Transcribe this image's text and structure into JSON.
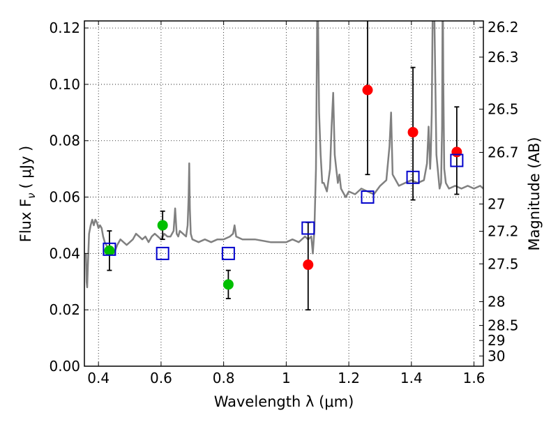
{
  "chart_data": {
    "type": "scatter",
    "xlabel": "Wavelength  λ (μm)",
    "ylabel": "Flux  F",
    "ylabel_sub": "ν",
    "ylabel_unit": "( μJy )",
    "y2label": "Magnitude (AB)",
    "xlim": [
      0.355,
      1.63
    ],
    "ylim": [
      0.0,
      0.1225
    ],
    "grid": true,
    "x_ticks": [
      {
        "value": 0.4,
        "label": "0.4"
      },
      {
        "value": 0.6,
        "label": "0.6"
      },
      {
        "value": 0.8,
        "label": "0.8"
      },
      {
        "value": 1.0,
        "label": "1"
      },
      {
        "value": 1.2,
        "label": "1.2"
      },
      {
        "value": 1.4,
        "label": "1.4"
      },
      {
        "value": 1.6,
        "label": "1.6"
      }
    ],
    "y_ticks": [
      {
        "value": 0.0,
        "label": "0.00"
      },
      {
        "value": 0.02,
        "label": "0.02"
      },
      {
        "value": 0.04,
        "label": "0.04"
      },
      {
        "value": 0.06,
        "label": "0.06"
      },
      {
        "value": 0.08,
        "label": "0.08"
      },
      {
        "value": 0.1,
        "label": "0.10"
      },
      {
        "value": 0.12,
        "label": "0.12"
      }
    ],
    "mag_ticks": [
      {
        "value": 26.2,
        "label": "26.2"
      },
      {
        "value": 26.3,
        "label": "26.3"
      },
      {
        "value": 26.5,
        "label": "26.5"
      },
      {
        "value": 26.7,
        "label": "26.7"
      },
      {
        "value": 27.0,
        "label": "27"
      },
      {
        "value": 27.2,
        "label": "27.2"
      },
      {
        "value": 27.5,
        "label": "27.5"
      },
      {
        "value": 28.0,
        "label": "28"
      },
      {
        "value": 28.5,
        "label": "28.5"
      },
      {
        "value": 29.0,
        "label": "29"
      },
      {
        "value": 30.0,
        "label": "30"
      }
    ],
    "series": [
      {
        "kind": "line",
        "color": "#808080",
        "x": [
          0.36,
          0.362,
          0.364,
          0.366,
          0.37,
          0.375,
          0.38,
          0.385,
          0.39,
          0.395,
          0.4,
          0.405,
          0.41,
          0.415,
          0.42,
          0.43,
          0.44,
          0.45,
          0.46,
          0.47,
          0.48,
          0.49,
          0.5,
          0.51,
          0.52,
          0.53,
          0.54,
          0.55,
          0.56,
          0.57,
          0.58,
          0.59,
          0.6,
          0.61,
          0.62,
          0.63,
          0.64,
          0.645,
          0.65,
          0.655,
          0.66,
          0.67,
          0.68,
          0.685,
          0.688,
          0.69,
          0.692,
          0.695,
          0.7,
          0.72,
          0.74,
          0.76,
          0.78,
          0.8,
          0.82,
          0.83,
          0.835,
          0.84,
          0.86,
          0.88,
          0.9,
          0.95,
          1.0,
          1.02,
          1.04,
          1.06,
          1.07,
          1.08,
          1.085,
          1.09,
          1.095,
          1.098,
          1.1,
          1.102,
          1.105,
          1.11,
          1.115,
          1.12,
          1.13,
          1.14,
          1.145,
          1.15,
          1.155,
          1.16,
          1.165,
          1.17,
          1.175,
          1.18,
          1.19,
          1.2,
          1.22,
          1.24,
          1.26,
          1.28,
          1.3,
          1.32,
          1.33,
          1.335,
          1.34,
          1.36,
          1.38,
          1.4,
          1.42,
          1.44,
          1.45,
          1.455,
          1.46,
          1.462,
          1.465,
          1.47,
          1.48,
          1.49,
          1.495,
          1.498,
          1.5,
          1.502,
          1.505,
          1.51,
          1.52,
          1.54,
          1.56,
          1.58,
          1.6,
          1.62,
          1.63
        ],
        "y": [
          0.04,
          0.03,
          0.028,
          0.035,
          0.047,
          0.05,
          0.052,
          0.05,
          0.052,
          0.051,
          0.049,
          0.05,
          0.049,
          0.046,
          0.044,
          0.042,
          0.041,
          0.04,
          0.043,
          0.045,
          0.044,
          0.043,
          0.044,
          0.045,
          0.047,
          0.046,
          0.045,
          0.046,
          0.044,
          0.046,
          0.047,
          0.046,
          0.045,
          0.047,
          0.046,
          0.046,
          0.048,
          0.056,
          0.047,
          0.046,
          0.048,
          0.047,
          0.046,
          0.05,
          0.06,
          0.072,
          0.056,
          0.047,
          0.045,
          0.044,
          0.045,
          0.044,
          0.045,
          0.045,
          0.046,
          0.047,
          0.05,
          0.046,
          0.045,
          0.045,
          0.045,
          0.044,
          0.044,
          0.045,
          0.044,
          0.046,
          0.045,
          0.046,
          0.04,
          0.048,
          0.07,
          0.11,
          0.14,
          0.12,
          0.09,
          0.075,
          0.065,
          0.065,
          0.062,
          0.07,
          0.085,
          0.097,
          0.075,
          0.07,
          0.065,
          0.068,
          0.063,
          0.062,
          0.06,
          0.062,
          0.061,
          0.063,
          0.062,
          0.061,
          0.064,
          0.066,
          0.078,
          0.09,
          0.068,
          0.064,
          0.065,
          0.066,
          0.065,
          0.066,
          0.072,
          0.085,
          0.07,
          0.075,
          0.09,
          0.15,
          0.075,
          0.063,
          0.065,
          0.085,
          0.14,
          0.1,
          0.07,
          0.065,
          0.063,
          0.064,
          0.063,
          0.064,
          0.063,
          0.064,
          0.063
        ]
      },
      {
        "kind": "points",
        "marker": "filled-circle",
        "color": "#00bf00",
        "x": [
          0.435,
          0.605,
          0.815
        ],
        "y": [
          0.041,
          0.05,
          0.029
        ],
        "yerr_low": [
          0.034,
          0.045,
          0.024
        ],
        "yerr_high": [
          0.048,
          0.055,
          0.034
        ]
      },
      {
        "kind": "points",
        "marker": "filled-circle",
        "color": "#ff0000",
        "x": [
          1.07,
          1.26,
          1.405,
          1.545
        ],
        "y": [
          0.036,
          0.098,
          0.083,
          0.076
        ],
        "yerr_low": [
          0.02,
          0.068,
          0.059,
          0.061
        ],
        "yerr_high": [
          0.051,
          0.1225,
          0.106,
          0.092
        ]
      },
      {
        "kind": "points",
        "marker": "open-square",
        "color": "#0000cc",
        "x": [
          0.435,
          0.605,
          0.815,
          1.07,
          1.26,
          1.405,
          1.545
        ],
        "y": [
          0.0415,
          0.04,
          0.04,
          0.049,
          0.06,
          0.067,
          0.073
        ]
      }
    ]
  }
}
